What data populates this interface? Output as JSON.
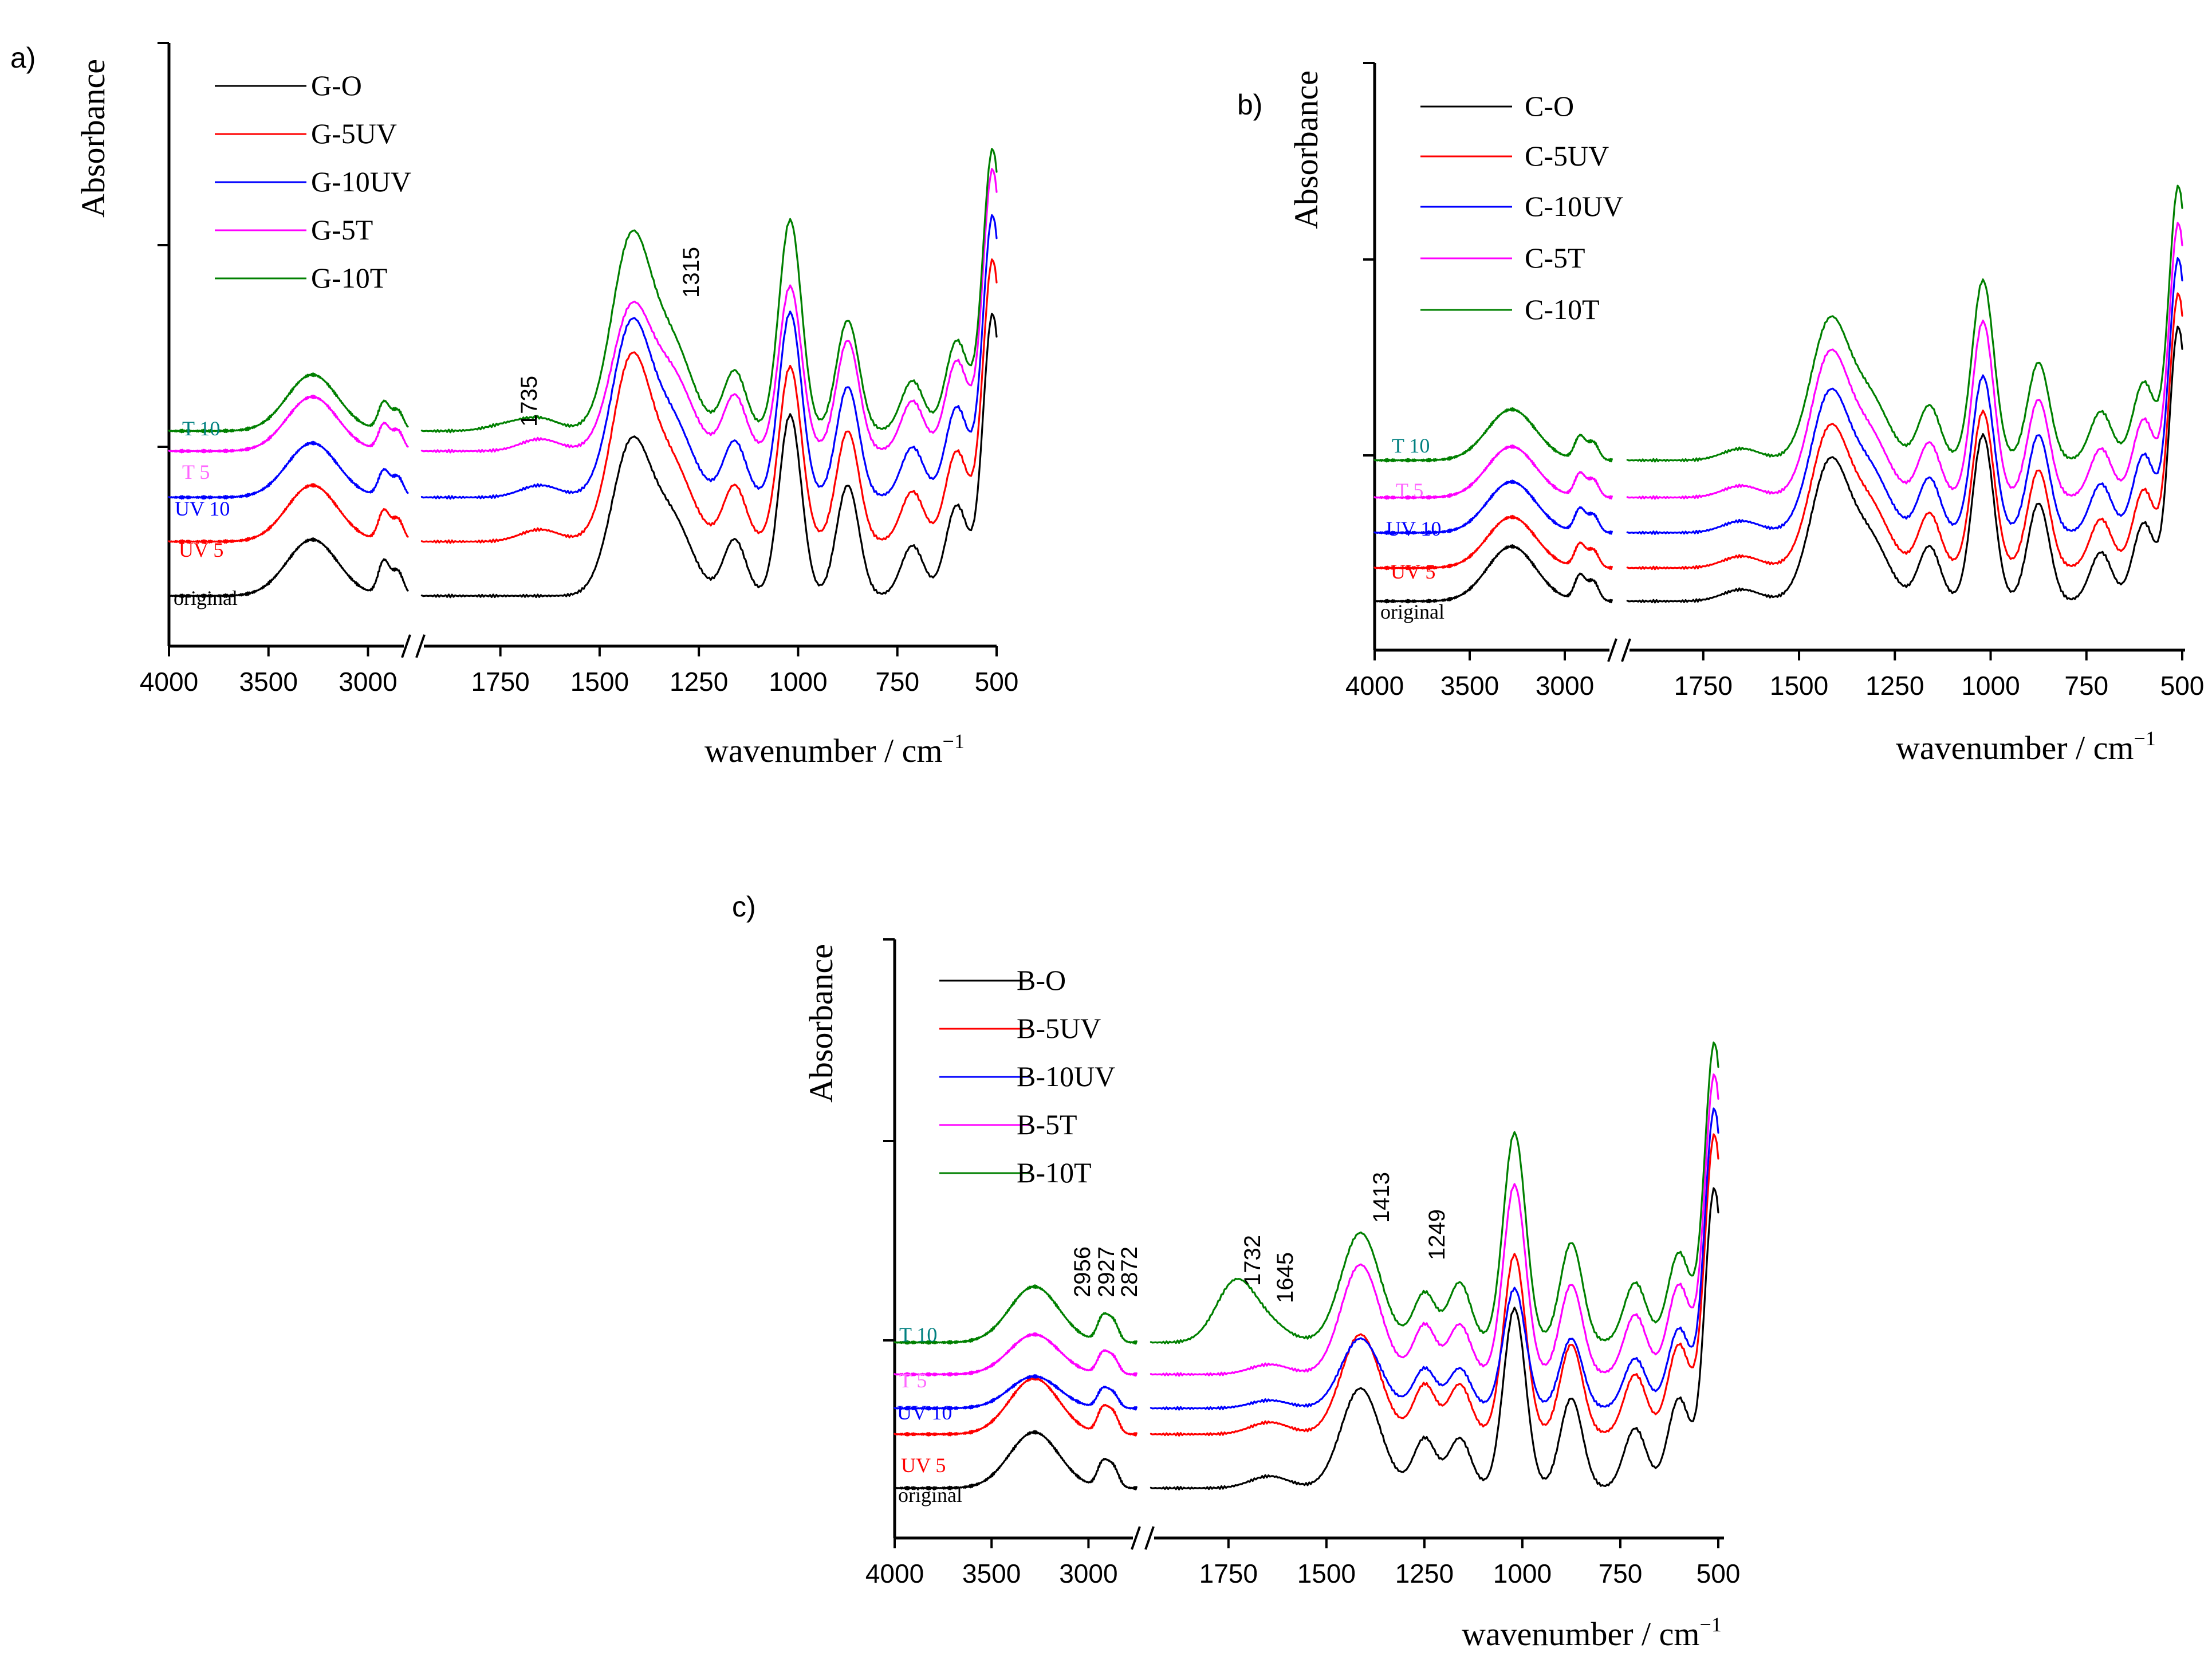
{
  "figure": {
    "x_label_text": "wavenumber / cm",
    "x_label_sup": "−1",
    "y_label": "Absorbance",
    "colors": {
      "O": "#000000",
      "UV5": "#ff0000",
      "UV10": "#0000ff",
      "T5": "#ff00ff",
      "T10": "#008000"
    },
    "label_colors": {
      "original": "#000000",
      "UV 5": "#ff0000",
      "UV 10": "#0000ff",
      "T 5": "#ff66ff",
      "T 10": "#008080"
    }
  },
  "chart_data": [
    {
      "panel": "a)",
      "type": "line",
      "title": "",
      "xlabel": "wavenumber / cm−1",
      "ylabel": "Absorbance",
      "xlim": [
        4000,
        500
      ],
      "ylim": [
        0,
        3
      ],
      "axis_break": [
        2800,
        1950
      ],
      "x_ticks": [
        "4000",
        "3500",
        "3000",
        "1750",
        "1500",
        "1250",
        "1000",
        "750",
        "500"
      ],
      "legend": [
        "G-O",
        "G-5UV",
        "G-10UV",
        "G-5T",
        "G-10T"
      ],
      "curve_labels": [
        "original",
        "UV 5",
        "UV 10",
        "T 5",
        "T 10"
      ],
      "peak_annotations": [
        "1735",
        "1315"
      ],
      "series": [
        {
          "name": "G-O",
          "color": "#000000",
          "offset": 0.25,
          "peaks": [
            [
              3280,
              0.28
            ],
            [
              2920,
              0.17
            ],
            [
              2850,
              0.12
            ],
            [
              1420,
              0.75
            ],
            [
              1315,
              0.35
            ],
            [
              1160,
              0.28
            ],
            [
              1020,
              0.9
            ],
            [
              875,
              0.55
            ],
            [
              712,
              0.25
            ],
            [
              600,
              0.45
            ],
            [
              510,
              1.4
            ]
          ]
        },
        {
          "name": "G-5UV",
          "color": "#ff0000",
          "offset": 0.52,
          "peaks": [
            [
              3280,
              0.28
            ],
            [
              2920,
              0.15
            ],
            [
              2850,
              0.11
            ],
            [
              1650,
              0.06
            ],
            [
              1420,
              0.9
            ],
            [
              1315,
              0.35
            ],
            [
              1160,
              0.28
            ],
            [
              1020,
              0.87
            ],
            [
              875,
              0.55
            ],
            [
              712,
              0.25
            ],
            [
              600,
              0.45
            ],
            [
              510,
              1.4
            ]
          ]
        },
        {
          "name": "G-10UV",
          "color": "#0000ff",
          "offset": 0.74,
          "peaks": [
            [
              3280,
              0.27
            ],
            [
              2920,
              0.13
            ],
            [
              2850,
              0.1
            ],
            [
              1650,
              0.06
            ],
            [
              1420,
              0.85
            ],
            [
              1315,
              0.35
            ],
            [
              1160,
              0.28
            ],
            [
              1020,
              0.92
            ],
            [
              875,
              0.55
            ],
            [
              712,
              0.25
            ],
            [
              600,
              0.45
            ],
            [
              510,
              1.4
            ]
          ]
        },
        {
          "name": "G-5T",
          "color": "#ff00ff",
          "offset": 0.97,
          "peaks": [
            [
              3280,
              0.27
            ],
            [
              2920,
              0.13
            ],
            [
              2850,
              0.1
            ],
            [
              1650,
              0.06
            ],
            [
              1420,
              0.7
            ],
            [
              1315,
              0.35
            ],
            [
              1160,
              0.28
            ],
            [
              1020,
              0.82
            ],
            [
              875,
              0.55
            ],
            [
              712,
              0.25
            ],
            [
              600,
              0.45
            ],
            [
              510,
              1.4
            ]
          ]
        },
        {
          "name": "G-10T",
          "color": "#008000",
          "offset": 1.07,
          "peaks": [
            [
              3280,
              0.28
            ],
            [
              2920,
              0.14
            ],
            [
              2850,
              0.1
            ],
            [
              1735,
              0.03
            ],
            [
              1650,
              0.06
            ],
            [
              1420,
              0.95
            ],
            [
              1315,
              0.4
            ],
            [
              1160,
              0.3
            ],
            [
              1020,
              1.05
            ],
            [
              875,
              0.55
            ],
            [
              712,
              0.25
            ],
            [
              600,
              0.45
            ],
            [
              510,
              1.4
            ]
          ]
        }
      ]
    },
    {
      "panel": "b)",
      "type": "line",
      "title": "",
      "xlabel": "wavenumber / cm−1",
      "ylabel": "Absorbance",
      "xlim": [
        4000,
        500
      ],
      "ylim": [
        0,
        3
      ],
      "axis_break": [
        2750,
        1950
      ],
      "x_ticks": [
        "4000",
        "3500",
        "3000",
        "1750",
        "1500",
        "1250",
        "1000",
        "750",
        "500"
      ],
      "legend": [
        "C-O",
        "C-5UV",
        "C-10UV",
        "C-5T",
        "C-10T"
      ],
      "curve_labels": [
        "original",
        "UV 5",
        "UV 10",
        "T 5",
        "T 10"
      ],
      "peak_annotations": [],
      "series": [
        {
          "name": "C-O",
          "color": "#000000",
          "offset": 0.25,
          "peaks": [
            [
              3280,
              0.28
            ],
            [
              2920,
              0.13
            ],
            [
              2850,
              0.1
            ],
            [
              1650,
              0.06
            ],
            [
              1420,
              0.7
            ],
            [
              1315,
              0.3
            ],
            [
              1160,
              0.28
            ],
            [
              1020,
              0.85
            ],
            [
              875,
              0.5
            ],
            [
              712,
              0.25
            ],
            [
              600,
              0.4
            ],
            [
              510,
              1.4
            ]
          ]
        },
        {
          "name": "C-5UV",
          "color": "#ff0000",
          "offset": 0.42,
          "peaks": [
            [
              3280,
              0.26
            ],
            [
              2920,
              0.12
            ],
            [
              2850,
              0.09
            ],
            [
              1650,
              0.06
            ],
            [
              1420,
              0.7
            ],
            [
              1315,
              0.3
            ],
            [
              1160,
              0.28
            ],
            [
              1020,
              0.8
            ],
            [
              875,
              0.5
            ],
            [
              712,
              0.25
            ],
            [
              600,
              0.4
            ],
            [
              510,
              1.4
            ]
          ]
        },
        {
          "name": "C-10UV",
          "color": "#0000ff",
          "offset": 0.6,
          "peaks": [
            [
              3280,
              0.26
            ],
            [
              2920,
              0.12
            ],
            [
              2850,
              0.09
            ],
            [
              1650,
              0.06
            ],
            [
              1420,
              0.7
            ],
            [
              1315,
              0.3
            ],
            [
              1160,
              0.28
            ],
            [
              1020,
              0.8
            ],
            [
              875,
              0.5
            ],
            [
              712,
              0.25
            ],
            [
              600,
              0.4
            ],
            [
              510,
              1.4
            ]
          ]
        },
        {
          "name": "C-5T",
          "color": "#ff00ff",
          "offset": 0.78,
          "peaks": [
            [
              3280,
              0.26
            ],
            [
              2920,
              0.12
            ],
            [
              2850,
              0.09
            ],
            [
              1650,
              0.06
            ],
            [
              1420,
              0.72
            ],
            [
              1315,
              0.3
            ],
            [
              1160,
              0.28
            ],
            [
              1020,
              0.9
            ],
            [
              875,
              0.5
            ],
            [
              712,
              0.25
            ],
            [
              600,
              0.4
            ],
            [
              510,
              1.4
            ]
          ]
        },
        {
          "name": "C-10T",
          "color": "#008000",
          "offset": 0.97,
          "peaks": [
            [
              3280,
              0.26
            ],
            [
              2920,
              0.12
            ],
            [
              2850,
              0.09
            ],
            [
              1650,
              0.06
            ],
            [
              1420,
              0.7
            ],
            [
              1315,
              0.3
            ],
            [
              1160,
              0.28
            ],
            [
              1020,
              0.92
            ],
            [
              875,
              0.5
            ],
            [
              712,
              0.25
            ],
            [
              600,
              0.4
            ],
            [
              510,
              1.4
            ]
          ]
        }
      ]
    },
    {
      "panel": "c)",
      "type": "line",
      "title": "",
      "xlabel": "wavenumber / cm−1",
      "ylabel": "Absorbance",
      "xlim": [
        4000,
        500
      ],
      "ylim": [
        0,
        3
      ],
      "axis_break": [
        2750,
        1950
      ],
      "x_ticks": [
        "4000",
        "3500",
        "3000",
        "1750",
        "1500",
        "1250",
        "1000",
        "750",
        "500"
      ],
      "legend": [
        "B-O",
        "B-5UV",
        "B-10UV",
        "B-5T",
        "B-10T"
      ],
      "curve_labels": [
        "original",
        "UV 5",
        "UV 10",
        "T 5",
        "T 10"
      ],
      "peak_annotations": [
        "2956",
        "2927",
        "2872",
        "1732",
        "1645",
        "1413",
        "1249"
      ],
      "series": [
        {
          "name": "B-O",
          "color": "#000000",
          "offset": 0.25,
          "peaks": [
            [
              3280,
              0.28
            ],
            [
              2927,
              0.12
            ],
            [
              2872,
              0.1
            ],
            [
              1645,
              0.06
            ],
            [
              1413,
              0.5
            ],
            [
              1249,
              0.25
            ],
            [
              1160,
              0.25
            ],
            [
              1020,
              0.9
            ],
            [
              875,
              0.45
            ],
            [
              712,
              0.3
            ],
            [
              600,
              0.45
            ],
            [
              510,
              1.5
            ]
          ]
        },
        {
          "name": "B-5UV",
          "color": "#ff0000",
          "offset": 0.52,
          "peaks": [
            [
              3280,
              0.28
            ],
            [
              2927,
              0.12
            ],
            [
              2872,
              0.1
            ],
            [
              1645,
              0.06
            ],
            [
              1413,
              0.5
            ],
            [
              1249,
              0.25
            ],
            [
              1160,
              0.25
            ],
            [
              1020,
              0.9
            ],
            [
              875,
              0.45
            ],
            [
              712,
              0.3
            ],
            [
              600,
              0.45
            ],
            [
              510,
              1.5
            ]
          ]
        },
        {
          "name": "B-10UV",
          "color": "#0000ff",
          "offset": 0.65,
          "peaks": [
            [
              3280,
              0.16
            ],
            [
              2927,
              0.09
            ],
            [
              2872,
              0.07
            ],
            [
              1645,
              0.04
            ],
            [
              1413,
              0.35
            ],
            [
              1249,
              0.2
            ],
            [
              1160,
              0.2
            ],
            [
              1020,
              0.6
            ],
            [
              875,
              0.35
            ],
            [
              712,
              0.25
            ],
            [
              600,
              0.4
            ],
            [
              510,
              1.5
            ]
          ]
        },
        {
          "name": "B-5T",
          "color": "#ff00ff",
          "offset": 0.82,
          "peaks": [
            [
              3280,
              0.2
            ],
            [
              2927,
              0.1
            ],
            [
              2872,
              0.08
            ],
            [
              1645,
              0.05
            ],
            [
              1413,
              0.55
            ],
            [
              1249,
              0.25
            ],
            [
              1160,
              0.25
            ],
            [
              1020,
              0.95
            ],
            [
              875,
              0.45
            ],
            [
              712,
              0.3
            ],
            [
              600,
              0.45
            ],
            [
              510,
              1.5
            ]
          ]
        },
        {
          "name": "B-10T",
          "color": "#008000",
          "offset": 0.98,
          "peaks": [
            [
              3280,
              0.28
            ],
            [
              2927,
              0.12
            ],
            [
              2872,
              0.1
            ],
            [
              1732,
              0.3
            ],
            [
              1645,
              0.08
            ],
            [
              1413,
              0.55
            ],
            [
              1249,
              0.25
            ],
            [
              1160,
              0.3
            ],
            [
              1020,
              1.05
            ],
            [
              875,
              0.5
            ],
            [
              712,
              0.3
            ],
            [
              600,
              0.45
            ],
            [
              510,
              1.5
            ]
          ]
        }
      ]
    }
  ]
}
